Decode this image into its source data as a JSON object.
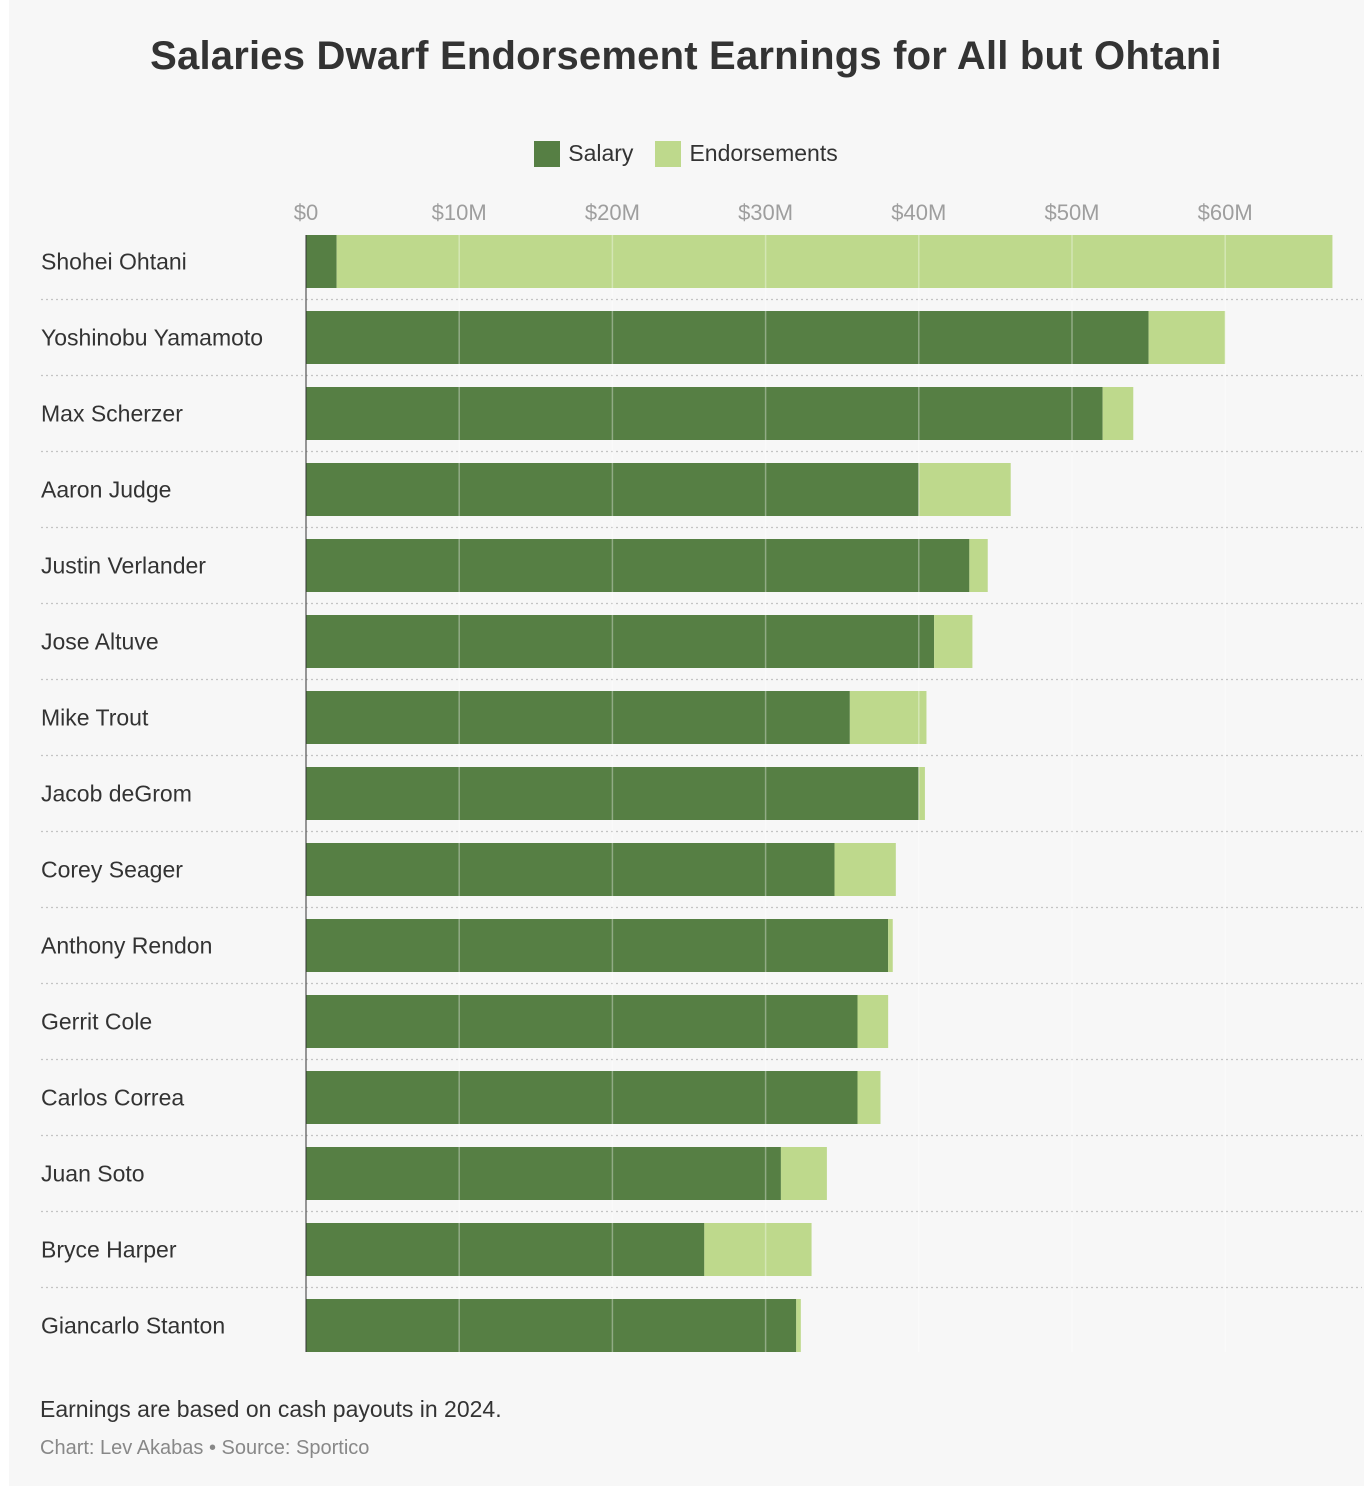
{
  "title": "Salaries Dwarf Endorsement Earnings for All but Ohtani",
  "legend": {
    "salary": "Salary",
    "endorsements": "Endorsements"
  },
  "colors": {
    "salary": "#567f44",
    "endorsements": "#bed98c",
    "background": "#f7f7f7",
    "grid": "#dadada",
    "tick": "#9e9e9e",
    "text": "#333333"
  },
  "note": "Earnings are based on cash payouts in 2024.",
  "credit": "Chart: Lev Akabas • Source: Sportico",
  "chart_data": {
    "type": "bar",
    "orientation": "horizontal",
    "stacked": true,
    "title": "Salaries Dwarf Endorsement Earnings for All but Ohtani",
    "categories": [
      "Shohei Ohtani",
      "Yoshinobu Yamamoto",
      "Max Scherzer",
      "Aaron Judge",
      "Justin Verlander",
      "Jose Altuve",
      "Mike Trout",
      "Jacob deGrom",
      "Corey Seager",
      "Anthony Rendon",
      "Gerrit Cole",
      "Carlos Correa",
      "Juan Soto",
      "Bryce Harper",
      "Giancarlo Stanton"
    ],
    "series": [
      {
        "name": "Salary",
        "values": [
          2,
          55,
          52,
          40,
          43.3,
          41,
          35.5,
          40,
          34.5,
          38,
          36,
          36,
          31,
          26,
          32
        ]
      },
      {
        "name": "Endorsements",
        "values": [
          65,
          5,
          2,
          6,
          1.2,
          2.5,
          5,
          0.4,
          4,
          0.3,
          2,
          1.5,
          3,
          7,
          0.3
        ]
      }
    ],
    "xticks": [
      "$0",
      "$10M",
      "$20M",
      "$30M",
      "$40M",
      "$50M",
      "$60M"
    ],
    "xtick_values": [
      0,
      10,
      20,
      30,
      40,
      50,
      60
    ],
    "xlim": [
      0,
      67
    ],
    "units": "millions of dollars",
    "grid": true,
    "legend_position": "top-center"
  }
}
